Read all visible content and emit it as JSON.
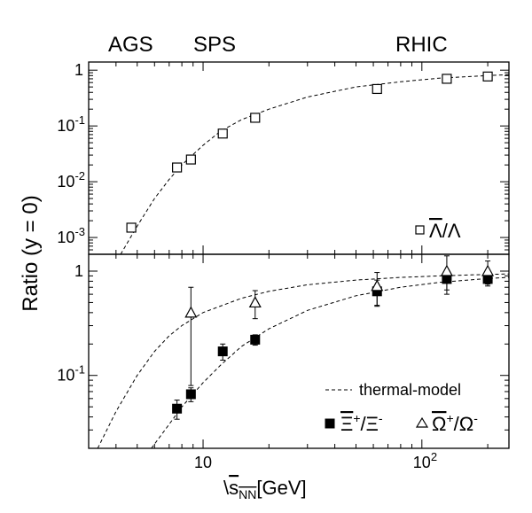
{
  "chart_data": [
    {
      "type": "scatter",
      "energy_labels": [
        "AGS",
        "SPS",
        "RHIC"
      ],
      "xscale": "log",
      "yscale": "log",
      "xlim": [
        3,
        250
      ],
      "ylim": [
        0.0005,
        1.4
      ],
      "ylabel": "Ratio (y = 0)",
      "y_ticks": [
        {
          "value": 1,
          "label": "1"
        },
        {
          "value": 0.1,
          "label": "10",
          "exp": "-1"
        },
        {
          "value": 0.01,
          "label": "10",
          "exp": "-2"
        },
        {
          "value": 0.001,
          "label": "10",
          "exp": "-3"
        }
      ],
      "series": [
        {
          "name": "Λ̄/Λ",
          "marker": "open-square",
          "points": [
            {
              "x": 4.7,
              "y": 0.0015
            },
            {
              "x": 7.6,
              "y": 0.018,
              "err": 0.003
            },
            {
              "x": 8.8,
              "y": 0.025,
              "err": 0.004
            },
            {
              "x": 12.3,
              "y": 0.073
            },
            {
              "x": 17.3,
              "y": 0.14,
              "err": 0.02
            },
            {
              "x": 62.4,
              "y": 0.46,
              "err": 0.06
            },
            {
              "x": 130,
              "y": 0.7,
              "err": 0.1
            },
            {
              "x": 200,
              "y": 0.77
            }
          ],
          "model": [
            [
              4.2,
              0.0005
            ],
            [
              5,
              0.0016
            ],
            [
              6,
              0.005
            ],
            [
              7,
              0.011
            ],
            [
              8,
              0.02
            ],
            [
              10,
              0.045
            ],
            [
              12,
              0.08
            ],
            [
              15,
              0.13
            ],
            [
              20,
              0.2
            ],
            [
              30,
              0.33
            ],
            [
              50,
              0.5
            ],
            [
              80,
              0.62
            ],
            [
              120,
              0.72
            ],
            [
              200,
              0.8
            ],
            [
              250,
              0.83
            ]
          ]
        }
      ]
    },
    {
      "type": "scatter",
      "xscale": "log",
      "yscale": "log",
      "xlim": [
        3,
        250
      ],
      "ylim": [
        0.02,
        1.45
      ],
      "xlabel_prefix": "\\",
      "xlabel_var": "s",
      "xlabel_sub": "NN",
      "xlabel_unit": "[GeV]",
      "x_ticks": [
        {
          "value": 10,
          "label": "10"
        },
        {
          "value": 100,
          "label": "10",
          "exp": "2"
        }
      ],
      "y_ticks": [
        {
          "value": 1,
          "label": "1"
        },
        {
          "value": 0.1,
          "label": "10",
          "exp": "-1"
        }
      ],
      "legend_model": "thermal-model",
      "series": [
        {
          "name": "Ξ̄⁺/Ξ⁻",
          "marker": "filled-square",
          "legend_main": "Ξ",
          "legend_sup": "+",
          "legend_den": "/Ξ",
          "legend_den_sup": "-",
          "points": [
            {
              "x": 7.6,
              "y": 0.048,
              "err": 0.01
            },
            {
              "x": 8.8,
              "y": 0.066,
              "err": 0.01
            },
            {
              "x": 12.3,
              "y": 0.17,
              "err": 0.03
            },
            {
              "x": 17.3,
              "y": 0.22,
              "err": 0.025
            },
            {
              "x": 62.4,
              "y": 0.64,
              "err": 0.18
            },
            {
              "x": 130,
              "y": 0.84,
              "err": 0.18
            },
            {
              "x": 200,
              "y": 0.84,
              "err": 0.12
            }
          ],
          "model": [
            [
              5.8,
              0.02
            ],
            [
              7,
              0.034
            ],
            [
              8,
              0.05
            ],
            [
              10,
              0.085
            ],
            [
              12,
              0.125
            ],
            [
              15,
              0.19
            ],
            [
              20,
              0.28
            ],
            [
              30,
              0.42
            ],
            [
              50,
              0.58
            ],
            [
              80,
              0.7
            ],
            [
              120,
              0.78
            ],
            [
              200,
              0.85
            ],
            [
              250,
              0.87
            ]
          ]
        },
        {
          "name": "Ω̄⁺/Ω⁻",
          "marker": "open-triangle",
          "legend_main": "Ω",
          "legend_sup": "+",
          "legend_den": "/Ω",
          "legend_den_sup": "-",
          "points": [
            {
              "x": 8.8,
              "y": 0.4,
              "errlo": 0.08,
              "errhi": 0.7
            },
            {
              "x": 17.3,
              "y": 0.5,
              "err": 0.15
            },
            {
              "x": 62.4,
              "y": 0.72,
              "err": 0.25
            },
            {
              "x": 130,
              "y": 1.0,
              "err": 0.4
            },
            {
              "x": 200,
              "y": 1.0,
              "err": 0.25
            }
          ],
          "model": [
            [
              3.3,
              0.02
            ],
            [
              4,
              0.045
            ],
            [
              5,
              0.1
            ],
            [
              6,
              0.17
            ],
            [
              7,
              0.24
            ],
            [
              8,
              0.3
            ],
            [
              10,
              0.4
            ],
            [
              15,
              0.55
            ],
            [
              20,
              0.64
            ],
            [
              30,
              0.74
            ],
            [
              50,
              0.82
            ],
            [
              80,
              0.87
            ],
            [
              120,
              0.9
            ],
            [
              200,
              0.93
            ],
            [
              250,
              0.94
            ]
          ]
        }
      ]
    }
  ]
}
